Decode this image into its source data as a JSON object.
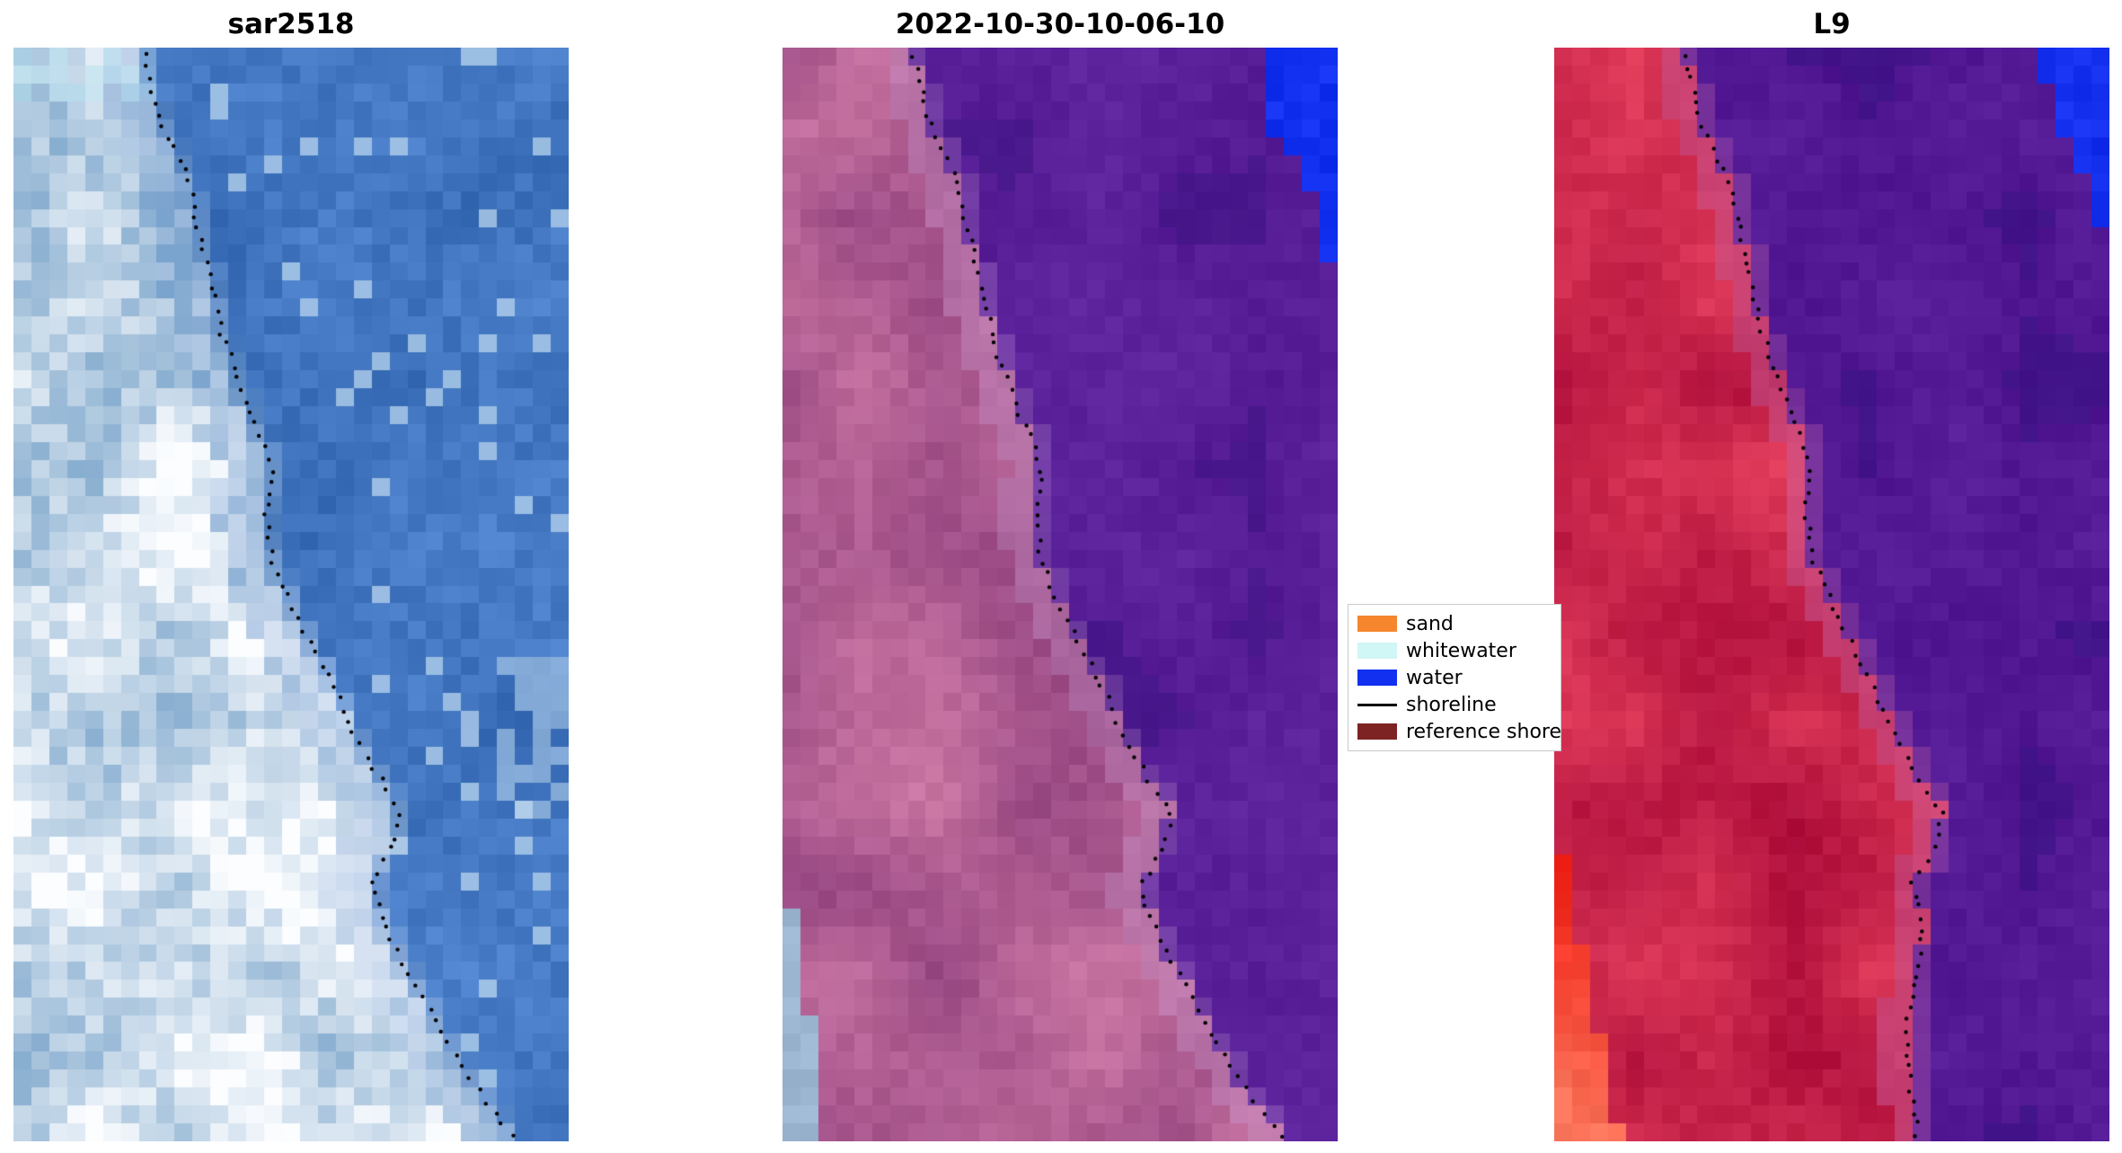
{
  "figure": {
    "background": "#ffffff",
    "panels": [
      {
        "id": "sar2518",
        "title": "sar2518",
        "type": "sar",
        "shoreline_series": 0,
        "palette": {
          "water": "#4478c2",
          "land_light": "#fbfdff",
          "land_shadow": "#88aed0",
          "speckle": "#c3dcee"
        }
      },
      {
        "id": "classified",
        "title": "2022-10-30-10-06-10",
        "type": "classified",
        "shoreline_series": 0,
        "palette": {
          "land_dark": "#944480",
          "land_light": "#ce7aa6",
          "transition": "#c496cd",
          "water": "#581f99",
          "water_dark": "#3c1682",
          "corner_blue": "#1230ef",
          "whitewater_strip": "#9cb6d1"
        },
        "blue_corner_steps": [
          [
            0.045,
            0.855
          ],
          [
            0.075,
            0.875
          ],
          [
            0.105,
            0.9
          ],
          [
            0.135,
            0.93
          ],
          [
            0.165,
            0.955
          ],
          [
            0.2,
            0.975
          ]
        ],
        "whitewater_strip_region": {
          "y_start": 0.72,
          "width_base": 0.015,
          "width_grow": 0.05
        }
      },
      {
        "id": "l9",
        "title": "L9",
        "type": "l9",
        "shoreline_series": 1,
        "palette": {
          "land_dark": "#ac0c3a",
          "land_light": "#e43e5c",
          "transition": "#c869aa",
          "water": "#541a96",
          "water_dark": "#371482",
          "corner_blue": "#1430ee",
          "hot": "#f22318",
          "hot_light": "#ff8266"
        },
        "blue_corner_steps": [
          [
            0.04,
            0.88
          ],
          [
            0.08,
            0.91
          ],
          [
            0.12,
            0.945
          ],
          [
            0.17,
            0.975
          ]
        ],
        "hot_corner_region": {
          "y_start": 0.74,
          "grow": 0.4
        }
      }
    ],
    "legend": {
      "items": [
        {
          "label": "sand",
          "swatch": "patch",
          "color": "#f5862d"
        },
        {
          "label": "whitewater",
          "swatch": "patch",
          "color": "#d0f6f5"
        },
        {
          "label": "water",
          "swatch": "patch",
          "color": "#1230ef"
        },
        {
          "label": "shoreline",
          "swatch": "line",
          "color": "#000000"
        },
        {
          "label": "reference shore",
          "swatch": "patch",
          "color": "#7e2323"
        }
      ]
    }
  },
  "chart_data": {
    "type": "line",
    "title": "",
    "panel_titles": [
      "sar2518",
      "2022-10-30-10-06-10",
      "L9"
    ],
    "legend_entries": [
      "sand",
      "whitewater",
      "water",
      "shoreline",
      "reference shore"
    ],
    "series": [
      {
        "name": "shoreline (sar2518 and 2022-10-30-10-06-10 panels)",
        "coords": "normalized x,y in panel, y downward",
        "points": [
          [
            0.235,
            0.0
          ],
          [
            0.245,
            0.03
          ],
          [
            0.26,
            0.06
          ],
          [
            0.295,
            0.1
          ],
          [
            0.32,
            0.13
          ],
          [
            0.335,
            0.17
          ],
          [
            0.355,
            0.21
          ],
          [
            0.375,
            0.26
          ],
          [
            0.41,
            0.31
          ],
          [
            0.445,
            0.355
          ],
          [
            0.465,
            0.385
          ],
          [
            0.455,
            0.425
          ],
          [
            0.465,
            0.465
          ],
          [
            0.5,
            0.51
          ],
          [
            0.545,
            0.555
          ],
          [
            0.575,
            0.585
          ],
          [
            0.61,
            0.625
          ],
          [
            0.655,
            0.665
          ],
          [
            0.7,
            0.7
          ],
          [
            0.685,
            0.73
          ],
          [
            0.645,
            0.765
          ],
          [
            0.665,
            0.8
          ],
          [
            0.715,
            0.85
          ],
          [
            0.76,
            0.89
          ],
          [
            0.805,
            0.93
          ],
          [
            0.86,
            0.97
          ],
          [
            0.905,
            1.0
          ]
        ]
      },
      {
        "name": "shoreline (L9 panel)",
        "coords": "normalized x,y in panel, y downward",
        "points": [
          [
            0.235,
            0.0
          ],
          [
            0.245,
            0.03
          ],
          [
            0.26,
            0.06
          ],
          [
            0.295,
            0.1
          ],
          [
            0.32,
            0.13
          ],
          [
            0.335,
            0.17
          ],
          [
            0.355,
            0.21
          ],
          [
            0.375,
            0.26
          ],
          [
            0.41,
            0.31
          ],
          [
            0.445,
            0.355
          ],
          [
            0.465,
            0.385
          ],
          [
            0.455,
            0.425
          ],
          [
            0.465,
            0.465
          ],
          [
            0.5,
            0.51
          ],
          [
            0.545,
            0.555
          ],
          [
            0.575,
            0.585
          ],
          [
            0.61,
            0.625
          ],
          [
            0.655,
            0.665
          ],
          [
            0.7,
            0.7
          ],
          [
            0.685,
            0.73
          ],
          [
            0.645,
            0.765
          ],
          [
            0.665,
            0.8
          ],
          [
            0.65,
            0.85
          ],
          [
            0.635,
            0.9
          ],
          [
            0.64,
            0.95
          ],
          [
            0.655,
            1.0
          ]
        ]
      }
    ]
  }
}
